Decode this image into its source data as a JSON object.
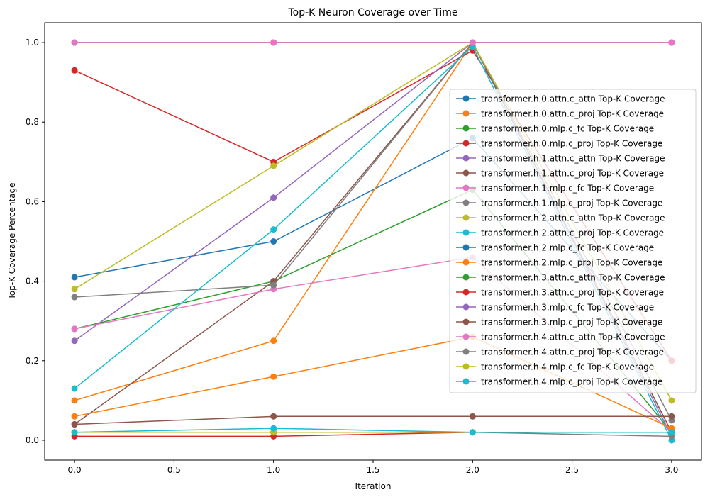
{
  "chart_data": {
    "type": "line",
    "title": "Top-K Neuron Coverage over Time",
    "xlabel": "Iteration",
    "ylabel": "Top-K Coverage Percentage",
    "x": [
      0,
      1,
      2,
      3
    ],
    "xlim": [
      -0.15,
      3.15
    ],
    "ylim": [
      -0.05,
      1.05
    ],
    "xticks": [
      0.0,
      0.5,
      1.0,
      1.5,
      2.0,
      2.5,
      3.0
    ],
    "xtick_labels": [
      "0.0",
      "0.5",
      "1.0",
      "1.5",
      "2.0",
      "2.5",
      "3.0"
    ],
    "yticks": [
      0.0,
      0.2,
      0.4,
      0.6,
      0.8,
      1.0
    ],
    "ytick_labels": [
      "0.0",
      "0.2",
      "0.4",
      "0.6",
      "0.8",
      "1.0"
    ],
    "grid": false,
    "legend_position": "center-right",
    "marker": "circle",
    "series": [
      {
        "name": "transformer.h.0.attn.c_attn Top-K Coverage",
        "color": "#1f77b4",
        "values": [
          0.41,
          0.5,
          0.76,
          0.2
        ]
      },
      {
        "name": "transformer.h.0.attn.c_proj Top-K Coverage",
        "color": "#ff7f0e",
        "values": [
          0.1,
          0.25,
          1.0,
          0.02
        ]
      },
      {
        "name": "transformer.h.0.mlp.c_fc Top-K Coverage",
        "color": "#2ca02c",
        "values": [
          0.28,
          0.4,
          0.63,
          0.02
        ]
      },
      {
        "name": "transformer.h.0.mlp.c_proj Top-K Coverage",
        "color": "#d62728",
        "values": [
          0.93,
          0.7,
          0.98,
          0.2
        ]
      },
      {
        "name": "transformer.h.1.attn.c_attn Top-K Coverage",
        "color": "#9467bd",
        "values": [
          0.25,
          0.61,
          1.0,
          0.01
        ]
      },
      {
        "name": "transformer.h.1.attn.c_proj Top-K Coverage",
        "color": "#8c564b",
        "values": [
          0.04,
          0.4,
          1.0,
          0.02
        ]
      },
      {
        "name": "transformer.h.1.mlp.c_fc Top-K Coverage",
        "color": "#e377c2",
        "values": [
          0.28,
          0.38,
          0.46,
          0.02
        ]
      },
      {
        "name": "transformer.h.1.mlp.c_proj Top-K Coverage",
        "color": "#7f7f7f",
        "values": [
          0.36,
          0.39,
          1.0,
          0.05
        ]
      },
      {
        "name": "transformer.h.2.attn.c_attn Top-K Coverage",
        "color": "#bcbd22",
        "values": [
          0.38,
          0.69,
          1.0,
          0.1
        ]
      },
      {
        "name": "transformer.h.2.attn.c_proj Top-K Coverage",
        "color": "#17becf",
        "values": [
          0.13,
          0.53,
          0.99,
          0.0
        ]
      },
      {
        "name": "transformer.h.2.mlp.c_fc Top-K Coverage",
        "color": "#1f77b4",
        "values": [
          0.02,
          0.02,
          0.02,
          0.02
        ]
      },
      {
        "name": "transformer.h.2.mlp.c_proj Top-K Coverage",
        "color": "#ff7f0e",
        "values": [
          0.06,
          0.16,
          0.26,
          0.03
        ]
      },
      {
        "name": "transformer.h.3.attn.c_attn Top-K Coverage",
        "color": "#2ca02c",
        "values": [
          1.0,
          1.0,
          1.0,
          1.0
        ]
      },
      {
        "name": "transformer.h.3.attn.c_proj Top-K Coverage",
        "color": "#d62728",
        "values": [
          0.01,
          0.01,
          0.02,
          0.02
        ]
      },
      {
        "name": "transformer.h.3.mlp.c_fc Top-K Coverage",
        "color": "#9467bd",
        "values": [
          1.0,
          1.0,
          1.0,
          1.0
        ]
      },
      {
        "name": "transformer.h.3.mlp.c_proj Top-K Coverage",
        "color": "#8c564b",
        "values": [
          0.04,
          0.06,
          0.06,
          0.06
        ]
      },
      {
        "name": "transformer.h.4.attn.c_attn Top-K Coverage",
        "color": "#e377c2",
        "values": [
          1.0,
          1.0,
          1.0,
          1.0
        ]
      },
      {
        "name": "transformer.h.4.attn.c_proj Top-K Coverage",
        "color": "#7f7f7f",
        "values": [
          0.02,
          0.02,
          0.02,
          0.01
        ]
      },
      {
        "name": "transformer.h.4.mlp.c_fc Top-K Coverage",
        "color": "#bcbd22",
        "values": [
          0.02,
          0.02,
          0.02,
          0.02
        ]
      },
      {
        "name": "transformer.h.4.mlp.c_proj Top-K Coverage",
        "color": "#17becf",
        "values": [
          0.02,
          0.03,
          0.02,
          0.02
        ]
      }
    ]
  }
}
